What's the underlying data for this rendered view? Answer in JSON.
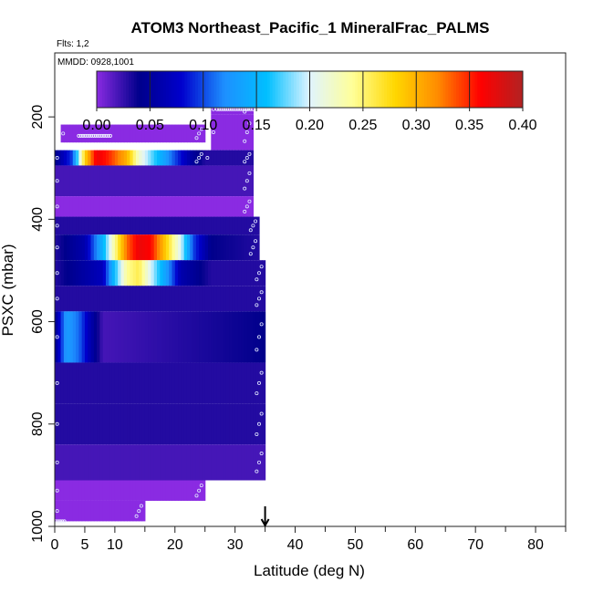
{
  "chart_data": {
    "type": "heatmap",
    "title": "ATOM3 Northeast_Pacific_1 MineralFrac_PALMS",
    "flights_label": "Flts: 1,2",
    "dates_label": "MMDD: 0928,1001",
    "xlabel": "Latitude (deg N)",
    "ylabel": "PSXC (mbar)",
    "xlim": [
      0,
      85
    ],
    "ylim": [
      1000,
      75
    ],
    "x_ticks": [
      0,
      5,
      10,
      20,
      30,
      40,
      50,
      60,
      70,
      80
    ],
    "x_minor_ticks": [
      15,
      25,
      35,
      45,
      55,
      65,
      75,
      85
    ],
    "y_ticks": [
      200,
      400,
      600,
      800,
      1000
    ],
    "colorbar": {
      "range": [
        0,
        0.4
      ],
      "ticks": [
        "0.00",
        "0.05",
        "0.10",
        "0.15",
        "0.20",
        "0.25",
        "0.30",
        "0.35",
        "0.40"
      ],
      "colors": [
        "#8a2be2",
        "#00008b",
        "#0000cd",
        "#1e90ff",
        "#00bfff",
        "#e0f4ff",
        "#ffff99",
        "#ffd700",
        "#ff8c00",
        "#ff0000",
        "#b22222"
      ]
    },
    "marker": {
      "x": 35,
      "label": "down-arrow"
    },
    "series": [
      {
        "lat_range": [
          26,
          33
        ],
        "p_range": [
          175,
          195
        ],
        "value": 0.0
      },
      {
        "lat_range": [
          26,
          33
        ],
        "p_range": [
          195,
          265
        ],
        "value": 0.0
      },
      {
        "lat_range": [
          1,
          25
        ],
        "p_range": [
          215,
          250
        ],
        "value": 0.0
      },
      {
        "lat_range": [
          0,
          25
        ],
        "p_range": [
          265,
          295
        ],
        "value": 0.2,
        "profile": [
          [
            0,
            0.04
          ],
          [
            3,
            0.1
          ],
          [
            5,
            0.28
          ],
          [
            7,
            0.37
          ],
          [
            9,
            0.35
          ],
          [
            12,
            0.3
          ],
          [
            14,
            0.22
          ],
          [
            17,
            0.16
          ],
          [
            20,
            0.1
          ],
          [
            23,
            0.05
          ],
          [
            25,
            0.03
          ]
        ]
      },
      {
        "lat_range": [
          25,
          33
        ],
        "p_range": [
          265,
          295
        ],
        "value": 0.03
      },
      {
        "lat_range": [
          0,
          33
        ],
        "p_range": [
          295,
          355
        ],
        "value": 0.02
      },
      {
        "lat_range": [
          0,
          33
        ],
        "p_range": [
          355,
          395
        ],
        "value": 0.0
      },
      {
        "lat_range": [
          0,
          34
        ],
        "p_range": [
          395,
          430
        ],
        "value": 0.03
      },
      {
        "lat_range": [
          0,
          34
        ],
        "p_range": [
          430,
          480
        ],
        "value": 0.2,
        "profile": [
          [
            0,
            0.03
          ],
          [
            5,
            0.06
          ],
          [
            8,
            0.15
          ],
          [
            10,
            0.24
          ],
          [
            12,
            0.33
          ],
          [
            14,
            0.37
          ],
          [
            16,
            0.36
          ],
          [
            18,
            0.3
          ],
          [
            21,
            0.2
          ],
          [
            23,
            0.1
          ],
          [
            26,
            0.04
          ],
          [
            34,
            0.03
          ]
        ]
      },
      {
        "lat_range": [
          0,
          35
        ],
        "p_range": [
          480,
          530
        ],
        "value": 0.03,
        "profile": [
          [
            0,
            0.03
          ],
          [
            8,
            0.07
          ],
          [
            10,
            0.16
          ],
          [
            12,
            0.24
          ],
          [
            14,
            0.26
          ],
          [
            16,
            0.2
          ],
          [
            19,
            0.12
          ],
          [
            21,
            0.06
          ],
          [
            26,
            0.03
          ],
          [
            35,
            0.03
          ]
        ]
      },
      {
        "lat_range": [
          0,
          35
        ],
        "p_range": [
          530,
          580
        ],
        "value": 0.03
      },
      {
        "lat_range": [
          0,
          35
        ],
        "p_range": [
          580,
          680
        ],
        "value": 0.03,
        "profile": [
          [
            0,
            0.04
          ],
          [
            1,
            0.09
          ],
          [
            2,
            0.13
          ],
          [
            4,
            0.11
          ],
          [
            6,
            0.06
          ],
          [
            8,
            0.02
          ],
          [
            35,
            0.04
          ]
        ]
      },
      {
        "lat_range": [
          0,
          35
        ],
        "p_range": [
          680,
          760
        ],
        "value": 0.03
      },
      {
        "lat_range": [
          0,
          35
        ],
        "p_range": [
          760,
          840
        ],
        "value": 0.03
      },
      {
        "lat_range": [
          0,
          35
        ],
        "p_range": [
          840,
          910
        ],
        "value": 0.02
      },
      {
        "lat_range": [
          0,
          25
        ],
        "p_range": [
          910,
          950
        ],
        "value": 0.0
      },
      {
        "lat_range": [
          0,
          15
        ],
        "p_range": [
          950,
          990
        ],
        "value": 0.0
      }
    ]
  }
}
